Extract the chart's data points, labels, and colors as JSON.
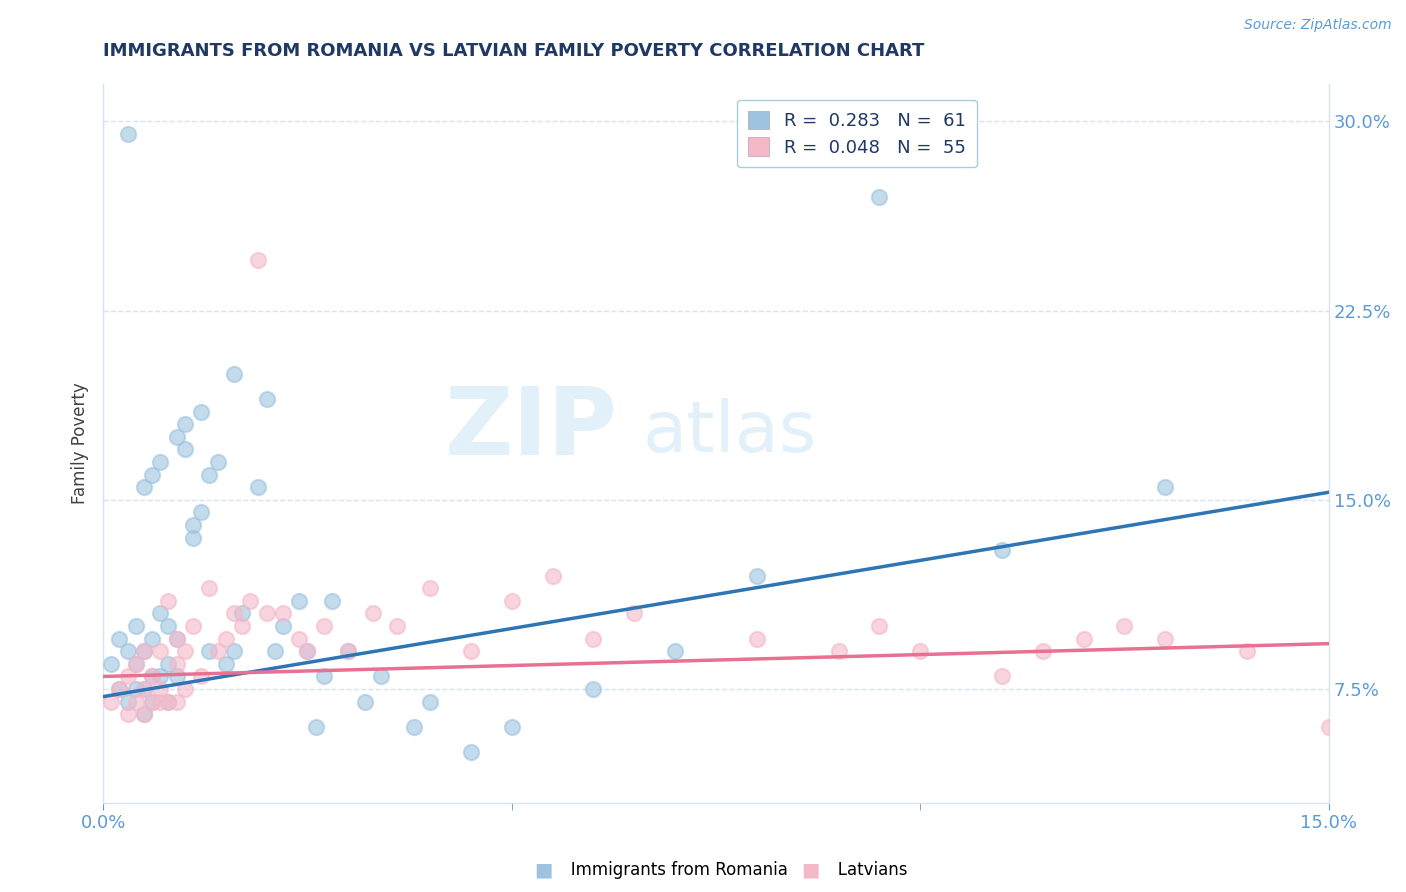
{
  "title": "IMMIGRANTS FROM ROMANIA VS LATVIAN FAMILY POVERTY CORRELATION CHART",
  "source_text": "Source: ZipAtlas.com",
  "ylabel": "Family Poverty",
  "xlim": [
    0.0,
    0.15
  ],
  "ylim": [
    0.03,
    0.315
  ],
  "yticks": [
    0.075,
    0.15,
    0.225,
    0.3
  ],
  "yticklabels": [
    "7.5%",
    "15.0%",
    "22.5%",
    "30.0%"
  ],
  "xtick_positions": [
    0.0,
    0.15
  ],
  "xticklabels": [
    "0.0%",
    "15.0%"
  ],
  "blue_color": "#9dc3e0",
  "pink_color": "#f4b8c8",
  "blue_line_color": "#2e75b6",
  "pink_line_color": "#e87090",
  "legend_line1": "R =  0.283   N =  61",
  "legend_line2": "R =  0.048   N =  55",
  "label1": "Immigrants from Romania",
  "label2": "Latvians",
  "watermark_zip": "ZIP",
  "watermark_atlas": "atlas",
  "title_color": "#203864",
  "tick_color": "#5b9bd5",
  "grid_color": "#d6e4f0",
  "blue_scatter_x": [
    0.001,
    0.002,
    0.002,
    0.003,
    0.003,
    0.004,
    0.004,
    0.004,
    0.005,
    0.005,
    0.005,
    0.006,
    0.006,
    0.006,
    0.007,
    0.007,
    0.008,
    0.008,
    0.008,
    0.009,
    0.009,
    0.01,
    0.01,
    0.011,
    0.012,
    0.012,
    0.013,
    0.013,
    0.014,
    0.015,
    0.016,
    0.016,
    0.017,
    0.019,
    0.02,
    0.021,
    0.022,
    0.024,
    0.025,
    0.026,
    0.027,
    0.028,
    0.03,
    0.032,
    0.034,
    0.038,
    0.04,
    0.045,
    0.05,
    0.06,
    0.07,
    0.08,
    0.095,
    0.11,
    0.13,
    0.003,
    0.005,
    0.006,
    0.007,
    0.009,
    0.011
  ],
  "blue_scatter_y": [
    0.085,
    0.075,
    0.095,
    0.07,
    0.09,
    0.075,
    0.085,
    0.1,
    0.065,
    0.075,
    0.09,
    0.07,
    0.08,
    0.095,
    0.08,
    0.105,
    0.07,
    0.085,
    0.1,
    0.08,
    0.095,
    0.17,
    0.18,
    0.14,
    0.145,
    0.185,
    0.09,
    0.16,
    0.165,
    0.085,
    0.09,
    0.2,
    0.105,
    0.155,
    0.19,
    0.09,
    0.1,
    0.11,
    0.09,
    0.06,
    0.08,
    0.11,
    0.09,
    0.07,
    0.08,
    0.06,
    0.07,
    0.05,
    0.06,
    0.075,
    0.09,
    0.12,
    0.27,
    0.13,
    0.155,
    0.295,
    0.155,
    0.16,
    0.165,
    0.175,
    0.135
  ],
  "pink_scatter_x": [
    0.001,
    0.002,
    0.003,
    0.004,
    0.004,
    0.005,
    0.005,
    0.006,
    0.006,
    0.007,
    0.007,
    0.008,
    0.008,
    0.009,
    0.009,
    0.01,
    0.01,
    0.011,
    0.012,
    0.013,
    0.014,
    0.015,
    0.016,
    0.017,
    0.018,
    0.019,
    0.02,
    0.022,
    0.024,
    0.025,
    0.027,
    0.03,
    0.033,
    0.036,
    0.04,
    0.045,
    0.05,
    0.055,
    0.06,
    0.065,
    0.08,
    0.09,
    0.095,
    0.1,
    0.11,
    0.115,
    0.12,
    0.125,
    0.13,
    0.14,
    0.15,
    0.003,
    0.005,
    0.007,
    0.009
  ],
  "pink_scatter_y": [
    0.07,
    0.075,
    0.08,
    0.07,
    0.085,
    0.075,
    0.09,
    0.07,
    0.08,
    0.075,
    0.09,
    0.07,
    0.11,
    0.085,
    0.095,
    0.075,
    0.09,
    0.1,
    0.08,
    0.115,
    0.09,
    0.095,
    0.105,
    0.1,
    0.11,
    0.245,
    0.105,
    0.105,
    0.095,
    0.09,
    0.1,
    0.09,
    0.105,
    0.1,
    0.115,
    0.09,
    0.11,
    0.12,
    0.095,
    0.105,
    0.095,
    0.09,
    0.1,
    0.09,
    0.08,
    0.09,
    0.095,
    0.1,
    0.095,
    0.09,
    0.06,
    0.065,
    0.065,
    0.07,
    0.07
  ],
  "blue_trend_x": [
    0.0,
    0.15
  ],
  "blue_trend_y": [
    0.072,
    0.153
  ],
  "pink_trend_x": [
    0.0,
    0.15
  ],
  "pink_trend_y": [
    0.08,
    0.093
  ]
}
